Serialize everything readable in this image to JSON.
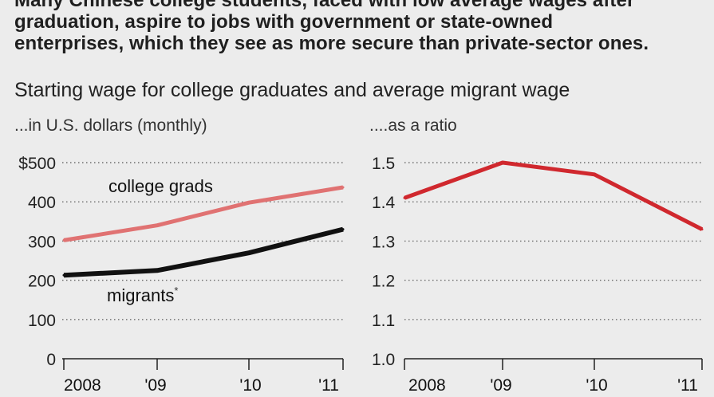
{
  "intro": {
    "line1": "Many Chinese college students, faced with low average wages after",
    "line2": "graduation, aspire to jobs with government or state-owned",
    "line3": "enterprises, which they see as more secure than private-sector ones."
  },
  "title": "Starting wage for college graduates and average migrant wage",
  "chart_data": [
    {
      "type": "line",
      "title": "...in U.S. dollars (monthly)",
      "categories": [
        "2008",
        "'09",
        "'10",
        "'11"
      ],
      "x": [
        2008,
        2009,
        2010,
        2011
      ],
      "series": [
        {
          "name": "college grads",
          "values": [
            302,
            340,
            398,
            437
          ],
          "color": "#e07272"
        },
        {
          "name": "migrants",
          "values": [
            213,
            225,
            270,
            330
          ],
          "color": "#111111"
        }
      ],
      "series_labels": [
        {
          "text": "college grads"
        },
        {
          "text": "migrants",
          "footnote": "*"
        }
      ],
      "y_ticks": [
        {
          "value": 500,
          "label": "$500"
        },
        {
          "value": 400,
          "label": "400"
        },
        {
          "value": 300,
          "label": "300"
        },
        {
          "value": 200,
          "label": "200"
        },
        {
          "value": 100,
          "label": "100"
        },
        {
          "value": 0,
          "label": "0"
        }
      ],
      "ylim": [
        0,
        500
      ],
      "grid": true
    },
    {
      "type": "line",
      "title": "....as a ratio",
      "categories": [
        "2008",
        "'09",
        "'10",
        "'11"
      ],
      "x": [
        2008,
        2009,
        2010,
        2011
      ],
      "series": [
        {
          "name": "ratio",
          "values": [
            1.41,
            1.5,
            1.47,
            1.33
          ],
          "color": "#d0282e"
        }
      ],
      "y_ticks": [
        {
          "value": 1.5,
          "label": "1.5"
        },
        {
          "value": 1.4,
          "label": "1.4"
        },
        {
          "value": 1.3,
          "label": "1.3"
        },
        {
          "value": 1.2,
          "label": "1.2"
        },
        {
          "value": 1.1,
          "label": "1.1"
        },
        {
          "value": 1.0,
          "label": "1.0"
        }
      ],
      "ylim": [
        1.0,
        1.5
      ],
      "grid": true
    }
  ]
}
